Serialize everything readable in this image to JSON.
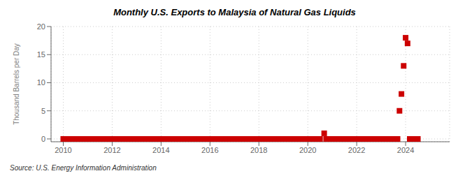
{
  "chart_data": {
    "type": "scatter",
    "title": "Monthly U.S. Exports to Malaysia of Natural Gas Liquids",
    "ylabel": "Thousand Barrels per Day",
    "annotations": [
      "Source: U.S. Energy Information Administration"
    ],
    "xlim": [
      2009.5,
      2025.8
    ],
    "ylim": [
      -0.5,
      20
    ],
    "xticks": [
      2010,
      2012,
      2014,
      2016,
      2018,
      2020,
      2022,
      2024
    ],
    "yticks": [
      0,
      5,
      10,
      15,
      20
    ],
    "grid": true,
    "color": "#cc0000",
    "marker": "square",
    "x": [
      2010.0,
      2010.08,
      2010.17,
      2010.25,
      2010.33,
      2010.42,
      2010.5,
      2010.58,
      2010.67,
      2010.75,
      2010.83,
      2010.92,
      2011.0,
      2011.08,
      2011.17,
      2011.25,
      2011.33,
      2011.42,
      2011.5,
      2011.58,
      2011.67,
      2011.75,
      2011.83,
      2011.92,
      2012.0,
      2012.08,
      2012.17,
      2012.25,
      2012.33,
      2012.42,
      2012.5,
      2012.58,
      2012.67,
      2012.75,
      2012.83,
      2012.92,
      2013.0,
      2013.08,
      2013.17,
      2013.25,
      2013.33,
      2013.42,
      2013.5,
      2013.58,
      2013.67,
      2013.75,
      2013.83,
      2013.92,
      2014.0,
      2014.08,
      2014.17,
      2014.25,
      2014.33,
      2014.42,
      2014.5,
      2014.58,
      2014.67,
      2014.75,
      2014.83,
      2014.92,
      2015.0,
      2015.08,
      2015.17,
      2015.25,
      2015.33,
      2015.42,
      2015.5,
      2015.58,
      2015.67,
      2015.75,
      2015.83,
      2015.92,
      2016.0,
      2016.08,
      2016.17,
      2016.25,
      2016.33,
      2016.42,
      2016.5,
      2016.58,
      2016.67,
      2016.75,
      2016.83,
      2016.92,
      2017.0,
      2017.08,
      2017.17,
      2017.25,
      2017.33,
      2017.42,
      2017.5,
      2017.58,
      2017.67,
      2017.75,
      2017.83,
      2017.92,
      2018.0,
      2018.08,
      2018.17,
      2018.25,
      2018.33,
      2018.42,
      2018.5,
      2018.58,
      2018.67,
      2018.75,
      2018.83,
      2018.92,
      2019.0,
      2019.08,
      2019.17,
      2019.25,
      2019.33,
      2019.42,
      2019.5,
      2019.58,
      2019.67,
      2019.75,
      2019.83,
      2019.92,
      2020.0,
      2020.08,
      2020.17,
      2020.25,
      2020.33,
      2020.42,
      2020.5,
      2020.67,
      2020.75,
      2020.83,
      2020.92,
      2021.0,
      2021.08,
      2021.17,
      2021.25,
      2021.33,
      2021.42,
      2021.5,
      2021.58,
      2021.67,
      2021.75,
      2021.83,
      2021.92,
      2022.0,
      2022.08,
      2022.17,
      2022.25,
      2022.33,
      2022.42,
      2022.5,
      2022.58,
      2022.67,
      2022.75,
      2022.83,
      2022.92,
      2023.0,
      2023.08,
      2023.17,
      2023.25,
      2023.33,
      2023.42,
      2023.5,
      2023.58,
      2023.67,
      2023.75,
      2023.83,
      2023.92,
      2024.0,
      2024.08,
      2024.17,
      2024.25,
      2024.33,
      2024.42,
      2024.5
    ],
    "values": [
      0.0,
      0.0,
      0.0,
      0.0,
      0.0,
      0.0,
      0.0,
      0.0,
      0.0,
      0.0,
      0.0,
      0.0,
      0.0,
      0.0,
      0.0,
      0.0,
      0.0,
      0.0,
      0.0,
      0.0,
      0.0,
      0.0,
      0.0,
      0.0,
      0.0,
      0.0,
      0.0,
      0.0,
      0.0,
      0.0,
      0.0,
      0.0,
      0.0,
      0.0,
      0.0,
      0.0,
      0.0,
      0.0,
      0.0,
      0.0,
      0.0,
      0.0,
      0.0,
      0.0,
      0.0,
      0.0,
      0.0,
      0.0,
      0.0,
      0.0,
      0.0,
      0.0,
      0.0,
      0.0,
      0.0,
      0.0,
      0.0,
      0.0,
      0.0,
      0.0,
      0.0,
      0.0,
      0.0,
      0.0,
      0.0,
      0.0,
      0.0,
      0.0,
      0.0,
      0.0,
      0.0,
      0.0,
      0.0,
      0.0,
      0.0,
      0.0,
      0.0,
      0.0,
      0.0,
      0.0,
      0.0,
      0.0,
      0.0,
      0.0,
      0.0,
      0.0,
      0.0,
      0.0,
      0.0,
      0.0,
      0.0,
      0.0,
      0.0,
      0.0,
      0.0,
      0.0,
      0.0,
      0.0,
      0.0,
      0.0,
      0.0,
      0.0,
      0.0,
      0.0,
      0.0,
      0.0,
      0.0,
      0.0,
      0.0,
      0.0,
      0.0,
      0.0,
      0.0,
      0.0,
      0.0,
      0.0,
      0.0,
      0.0,
      0.0,
      0.0,
      0.0,
      0.0,
      0.0,
      0.0,
      0.0,
      0.0,
      0.0,
      1.0,
      0.0,
      0.0,
      0.0,
      0.0,
      0.0,
      0.0,
      0.0,
      0.0,
      0.0,
      0.0,
      0.0,
      0.0,
      0.0,
      0.0,
      0.0,
      0.0,
      0.0,
      0.0,
      0.0,
      0.0,
      0.0,
      0.0,
      0.0,
      0.0,
      0.0,
      0.0,
      0.0,
      0.0,
      0.0,
      0.0,
      0.0,
      0.0,
      0.0,
      0.0,
      0.0,
      0.0,
      5.0,
      8.0,
      13.0,
      18.0,
      17.0,
      0.0,
      0.0,
      0.0,
      0.0,
      0.0
    ]
  }
}
